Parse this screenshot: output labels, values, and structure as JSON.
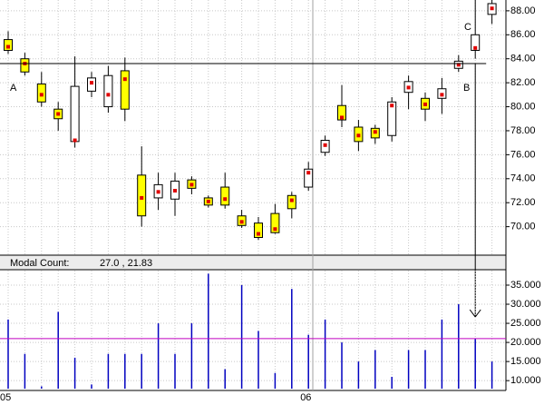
{
  "chart_data": [
    {
      "type": "candlestick",
      "categories": [
        "05",
        null,
        null,
        null,
        null,
        null,
        null,
        null,
        null,
        null,
        null,
        null,
        null,
        null,
        null,
        null,
        null,
        null,
        "06",
        null,
        null,
        null,
        null,
        null,
        null,
        null,
        null,
        null,
        null,
        null
      ],
      "open": [
        85.6,
        84.0,
        81.9,
        79.8,
        77.1,
        81.3,
        80.0,
        83.0,
        74.3,
        72.4,
        72.3,
        73.9,
        72.4,
        73.3,
        70.9,
        70.3,
        71.1,
        72.6,
        73.3,
        76.2,
        80.1,
        78.3,
        78.2,
        77.6,
        81.2,
        80.7,
        80.7,
        83.2,
        84.7,
        87.7
      ],
      "high": [
        86.3,
        84.5,
        82.9,
        80.4,
        84.2,
        82.9,
        83.4,
        84.1,
        76.7,
        74.5,
        74.5,
        74.2,
        72.6,
        74.5,
        71.4,
        70.8,
        71.9,
        72.9,
        75.4,
        77.6,
        81.8,
        78.9,
        78.5,
        80.8,
        82.6,
        81.2,
        82.4,
        84.3,
        88.9,
        88.9
      ],
      "low": [
        84.4,
        82.6,
        80.0,
        78.0,
        76.6,
        80.8,
        79.5,
        78.8,
        70.0,
        71.4,
        70.9,
        72.7,
        71.6,
        71.5,
        69.9,
        68.9,
        69.4,
        70.7,
        73.0,
        75.9,
        78.3,
        76.3,
        76.9,
        77.1,
        79.8,
        78.8,
        79.4,
        82.9,
        84.0,
        86.9
      ],
      "close": [
        84.7,
        82.9,
        80.4,
        79.0,
        81.7,
        82.4,
        82.6,
        79.8,
        70.9,
        73.5,
        73.8,
        73.2,
        71.8,
        71.8,
        70.1,
        69.1,
        69.5,
        71.5,
        74.8,
        77.2,
        78.9,
        77.1,
        77.4,
        80.4,
        82.1,
        79.8,
        81.5,
        83.8,
        86.0,
        88.6
      ],
      "marker": [
        85.0,
        83.6,
        81.0,
        79.4,
        77.2,
        82.0,
        81.0,
        82.3,
        72.4,
        72.9,
        73.0,
        73.5,
        72.1,
        72.3,
        70.4,
        69.4,
        69.8,
        72.2,
        74.5,
        76.8,
        79.1,
        77.6,
        77.9,
        80.1,
        81.6,
        80.2,
        81.0,
        83.5,
        84.9,
        88.2
      ],
      "up_color": "#ffffff",
      "down_color": "#ffff00",
      "marker_color": "#e00000",
      "hline": 83.6,
      "annotations": [
        "A",
        "B",
        "C"
      ],
      "ylim": [
        67.7,
        88.9
      ],
      "yticks": [
        {
          "value": 70,
          "label": "70.00"
        },
        {
          "value": 72,
          "label": "72.00"
        },
        {
          "value": 74,
          "label": "74.00"
        },
        {
          "value": 76,
          "label": "76.00"
        },
        {
          "value": 78,
          "label": "78.00"
        },
        {
          "value": 80,
          "label": "80.00"
        },
        {
          "value": 82,
          "label": "82.00"
        },
        {
          "value": 84,
          "label": "84.00"
        },
        {
          "value": 86,
          "label": "86.00"
        },
        {
          "value": 88,
          "label": "88.00"
        }
      ],
      "grid": true
    },
    {
      "type": "bar",
      "title": "Modal Count:",
      "readout": "27.0 , 21.83",
      "values": [
        26,
        17,
        8.5,
        28,
        16,
        9,
        17,
        17,
        17,
        25,
        17,
        25,
        38,
        13,
        35,
        23,
        12,
        34,
        22,
        26,
        20,
        15,
        18,
        11,
        18,
        18,
        26,
        30,
        21,
        15
      ],
      "color": "#0000c0",
      "reference_line": 21,
      "reference_color": "#c000c0",
      "ylim": [
        7.9,
        38.8
      ],
      "yticks": [
        {
          "value": 10,
          "label": "10.000"
        },
        {
          "value": 15,
          "label": "15.000"
        },
        {
          "value": 20,
          "label": "20.000"
        },
        {
          "value": 25,
          "label": "25.000"
        },
        {
          "value": 30,
          "label": "30.000"
        },
        {
          "value": 35,
          "label": "35.000"
        }
      ],
      "grid": true
    }
  ]
}
